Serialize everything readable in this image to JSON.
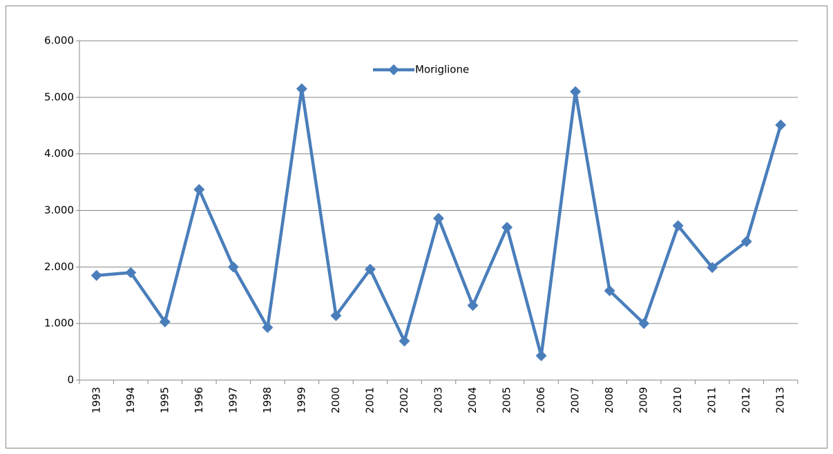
{
  "chart_data": {
    "type": "line",
    "categories": [
      "1993",
      "1994",
      "1995",
      "1996",
      "1997",
      "1998",
      "1999",
      "2000",
      "2001",
      "2002",
      "2003",
      "2004",
      "2005",
      "2006",
      "2007",
      "2008",
      "2009",
      "2010",
      "2011",
      "2012",
      "2013"
    ],
    "series": [
      {
        "name": "Moriglione",
        "color": "#4a7ebb",
        "values": [
          1850,
          1900,
          1030,
          3370,
          2000,
          930,
          5150,
          1140,
          1960,
          690,
          2860,
          1320,
          2700,
          430,
          5100,
          1580,
          1000,
          2730,
          1990,
          2450,
          4510
        ]
      }
    ],
    "ylim": [
      0,
      6000
    ],
    "yticks": [
      0,
      {
        "value": 1000,
        "label": "1.000"
      },
      {
        "value": 2000,
        "label": "2.000"
      },
      {
        "value": 3000,
        "label": "3.000"
      },
      {
        "value": 4000,
        "label": "4.000"
      },
      {
        "value": 5000,
        "label": "5.000"
      },
      {
        "value": 6000,
        "label": "6.000"
      }
    ],
    "grid": true,
    "legend": "top"
  }
}
